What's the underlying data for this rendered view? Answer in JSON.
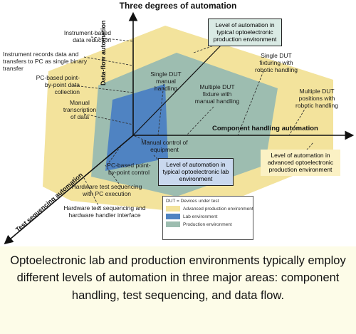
{
  "title": "Three degrees of automation",
  "axes": {
    "data_flow": "Data-flow automation",
    "component": "Component handling automation",
    "test_seq": "Test sequencing automation"
  },
  "data_flow_levels": [
    "Instrument-based data reduction",
    "Instrument records data and transfers to PC as single binary transfer",
    "PC-based point-by-point data collection",
    "Manual transcription of data"
  ],
  "component_levels": [
    "Manual control of equipment",
    "Single DUT manual handling",
    "Multiple DUT fixture with manual handling",
    "Single DUT fixturing with robotic handling",
    "Multiple DUT positions with robotic handling"
  ],
  "test_levels": [
    "PC-based point-by-point control",
    "Hardware test sequencing with PC execution",
    "Hardware test sequencing and hardware handler interface"
  ],
  "callouts": {
    "typical_production": "Level of automation in typical optoelectronic production environment",
    "lab": "Level of automation in typical optoelectronic lab environment",
    "advanced_production": "Level of automation in advanced optoelectronic production environment"
  },
  "legend": {
    "title": "DUT = Devices under test",
    "items": [
      {
        "label": "Advanced production environment",
        "color": "#f3e39c"
      },
      {
        "label": "Lab environment",
        "color": "#4f83c2"
      },
      {
        "label": "Production environment",
        "color": "#9dbdb0"
      }
    ]
  },
  "caption": "Optoelectronic lab and production environments typically employ different levels of automation in three major areas: component handling, test sequencing, and data flow."
}
